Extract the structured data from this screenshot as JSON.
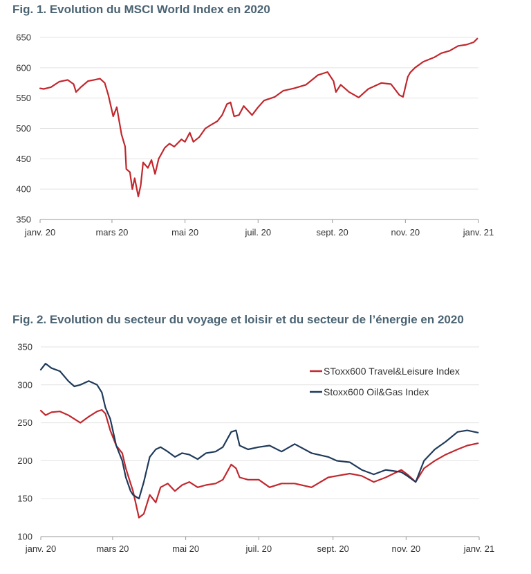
{
  "figures": {
    "fig1_title": "Fig. 1. Evolution du MSCI World Index en 2020",
    "fig2_title": "Fig. 2. Evolution du secteur du voyage et loisir et du secteur de l’énergie en 2020"
  },
  "chart_data": [
    {
      "type": "line",
      "title": "Fig. 1. Evolution du MSCI World Index en 2020",
      "xlabel": "",
      "ylabel": "",
      "ylim": [
        350,
        650
      ],
      "yticks": [
        350,
        400,
        450,
        500,
        550,
        600,
        650
      ],
      "x_tick_labels": [
        "janv. 20",
        "mars 20",
        "mai 20",
        "juil. 20",
        "sept. 20",
        "nov. 20",
        "janv. 21"
      ],
      "x_tick_dates": [
        "2020-01-01",
        "2020-03-01",
        "2020-05-01",
        "2020-07-01",
        "2020-09-01",
        "2020-11-01",
        "2021-01-01"
      ],
      "grid": true,
      "series": [
        {
          "color": "#c1272d",
          "x": [
            "2020-01-01",
            "2020-01-04",
            "2020-01-10",
            "2020-01-17",
            "2020-01-24",
            "2020-01-29",
            "2020-01-31",
            "2020-02-04",
            "2020-02-10",
            "2020-02-15",
            "2020-02-20",
            "2020-02-24",
            "2020-02-27",
            "2020-03-02",
            "2020-03-05",
            "2020-03-09",
            "2020-03-12",
            "2020-03-13",
            "2020-03-16",
            "2020-03-18",
            "2020-03-20",
            "2020-03-23",
            "2020-03-25",
            "2020-03-27",
            "2020-03-31",
            "2020-04-03",
            "2020-04-06",
            "2020-04-09",
            "2020-04-14",
            "2020-04-18",
            "2020-04-22",
            "2020-04-28",
            "2020-05-01",
            "2020-05-05",
            "2020-05-08",
            "2020-05-13",
            "2020-05-18",
            "2020-05-22",
            "2020-05-28",
            "2020-06-01",
            "2020-06-05",
            "2020-06-08",
            "2020-06-11",
            "2020-06-15",
            "2020-06-19",
            "2020-06-26",
            "2020-07-01",
            "2020-07-06",
            "2020-07-15",
            "2020-07-22",
            "2020-07-31",
            "2020-08-10",
            "2020-08-20",
            "2020-08-28",
            "2020-09-02",
            "2020-09-04",
            "2020-09-08",
            "2020-09-15",
            "2020-09-23",
            "2020-10-01",
            "2020-10-12",
            "2020-10-20",
            "2020-10-27",
            "2020-10-30",
            "2020-11-03",
            "2020-11-05",
            "2020-11-09",
            "2020-11-16",
            "2020-11-25",
            "2020-12-01",
            "2020-12-08",
            "2020-12-15",
            "2020-12-22",
            "2020-12-28",
            "2020-12-31"
          ],
          "values": [
            566,
            565,
            568,
            577,
            580,
            573,
            560,
            568,
            578,
            580,
            582,
            575,
            555,
            520,
            535,
            490,
            470,
            433,
            428,
            400,
            418,
            388,
            406,
            444,
            435,
            448,
            425,
            450,
            468,
            475,
            470,
            482,
            478,
            493,
            478,
            486,
            500,
            505,
            512,
            522,
            540,
            543,
            520,
            522,
            537,
            522,
            535,
            546,
            552,
            562,
            566,
            572,
            588,
            593,
            578,
            560,
            572,
            560,
            551,
            565,
            575,
            573,
            555,
            552,
            585,
            592,
            600,
            610,
            617,
            624,
            628,
            636,
            638,
            642,
            648
          ]
        }
      ]
    },
    {
      "type": "line",
      "title": "Fig. 2. Evolution du secteur du voyage et loisir et du secteur de l’énergie en 2020",
      "xlabel": "",
      "ylabel": "",
      "ylim": [
        100,
        350
      ],
      "yticks": [
        100,
        150,
        200,
        250,
        300,
        350
      ],
      "x_tick_labels": [
        "janv. 20",
        "mars 20",
        "mai 20",
        "juil. 20",
        "sept. 20",
        "nov. 20",
        "janv. 21"
      ],
      "x_tick_dates": [
        "2020-01-01",
        "2020-03-01",
        "2020-05-01",
        "2020-07-01",
        "2020-09-01",
        "2020-11-01",
        "2021-01-01"
      ],
      "legend_position": "top-right",
      "grid": true,
      "series": [
        {
          "name": "SToxx600 Travel&Leisure Index",
          "color": "#c1272d",
          "x": [
            "2020-01-01",
            "2020-01-05",
            "2020-01-10",
            "2020-01-17",
            "2020-01-24",
            "2020-01-29",
            "2020-02-03",
            "2020-02-10",
            "2020-02-17",
            "2020-02-21",
            "2020-02-24",
            "2020-02-28",
            "2020-03-04",
            "2020-03-09",
            "2020-03-12",
            "2020-03-16",
            "2020-03-18",
            "2020-03-23",
            "2020-03-27",
            "2020-04-01",
            "2020-04-06",
            "2020-04-10",
            "2020-04-16",
            "2020-04-22",
            "2020-04-28",
            "2020-05-04",
            "2020-05-11",
            "2020-05-18",
            "2020-05-26",
            "2020-06-01",
            "2020-06-08",
            "2020-06-12",
            "2020-06-15",
            "2020-06-22",
            "2020-07-01",
            "2020-07-10",
            "2020-07-20",
            "2020-07-31",
            "2020-08-14",
            "2020-08-28",
            "2020-09-04",
            "2020-09-15",
            "2020-09-25",
            "2020-10-05",
            "2020-10-15",
            "2020-10-28",
            "2020-11-02",
            "2020-11-09",
            "2020-11-16",
            "2020-11-25",
            "2020-12-04",
            "2020-12-14",
            "2020-12-22",
            "2020-12-31"
          ],
          "values": [
            266,
            260,
            264,
            265,
            260,
            255,
            250,
            258,
            265,
            267,
            262,
            240,
            220,
            210,
            190,
            170,
            160,
            125,
            130,
            155,
            145,
            165,
            170,
            160,
            168,
            172,
            165,
            168,
            170,
            175,
            195,
            190,
            178,
            175,
            175,
            165,
            170,
            170,
            165,
            178,
            180,
            183,
            180,
            172,
            178,
            188,
            182,
            172,
            190,
            200,
            208,
            215,
            220,
            223
          ]
        },
        {
          "name": "Stoxx600 Oil&Gas Index",
          "color": "#1f3a5a",
          "x": [
            "2020-01-01",
            "2020-01-05",
            "2020-01-10",
            "2020-01-17",
            "2020-01-24",
            "2020-01-29",
            "2020-02-03",
            "2020-02-10",
            "2020-02-17",
            "2020-02-21",
            "2020-02-24",
            "2020-02-28",
            "2020-03-04",
            "2020-03-09",
            "2020-03-12",
            "2020-03-16",
            "2020-03-18",
            "2020-03-23",
            "2020-03-27",
            "2020-04-01",
            "2020-04-06",
            "2020-04-10",
            "2020-04-16",
            "2020-04-22",
            "2020-04-28",
            "2020-05-04",
            "2020-05-11",
            "2020-05-18",
            "2020-05-26",
            "2020-06-01",
            "2020-06-08",
            "2020-06-12",
            "2020-06-15",
            "2020-06-22",
            "2020-07-01",
            "2020-07-10",
            "2020-07-20",
            "2020-07-31",
            "2020-08-14",
            "2020-08-28",
            "2020-09-04",
            "2020-09-15",
            "2020-09-25",
            "2020-10-05",
            "2020-10-15",
            "2020-10-28",
            "2020-11-02",
            "2020-11-09",
            "2020-11-16",
            "2020-11-25",
            "2020-12-04",
            "2020-12-14",
            "2020-12-22",
            "2020-12-31"
          ],
          "values": [
            320,
            328,
            322,
            318,
            305,
            298,
            300,
            305,
            300,
            290,
            270,
            255,
            220,
            200,
            178,
            160,
            155,
            150,
            172,
            205,
            215,
            218,
            212,
            205,
            210,
            208,
            202,
            210,
            212,
            218,
            238,
            240,
            220,
            215,
            218,
            220,
            212,
            222,
            210,
            205,
            200,
            198,
            188,
            182,
            188,
            185,
            180,
            172,
            200,
            215,
            225,
            238,
            240,
            237
          ]
        }
      ]
    }
  ]
}
